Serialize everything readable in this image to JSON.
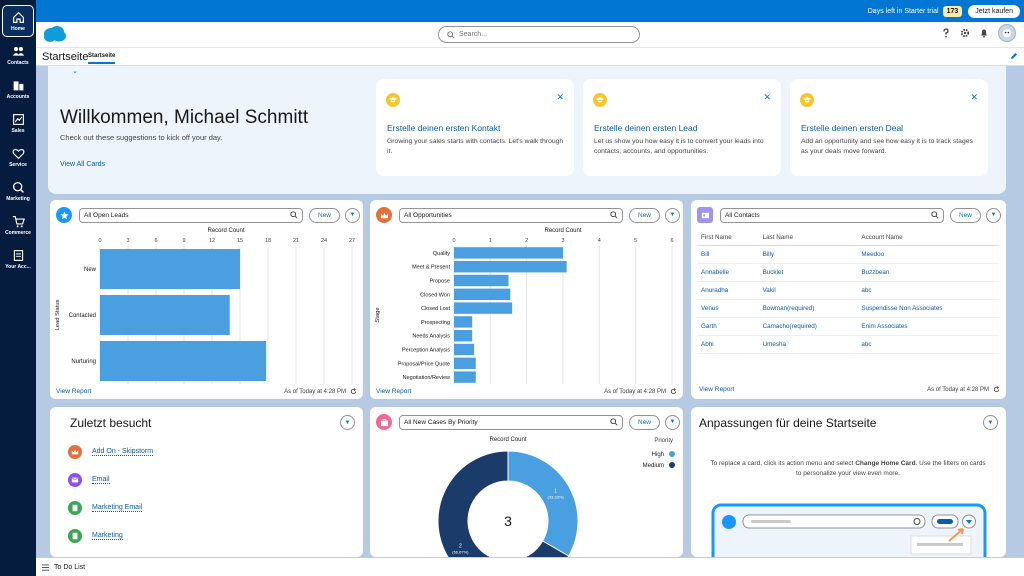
{
  "rail": [
    {
      "label": "Home",
      "icon": "home-icon"
    },
    {
      "label": "Contacts",
      "icon": "contacts-icon"
    },
    {
      "label": "Accounts",
      "icon": "accounts-icon"
    },
    {
      "label": "Sales",
      "icon": "sales-icon"
    },
    {
      "label": "Service",
      "icon": "heart-icon"
    },
    {
      "label": "Marketing",
      "icon": "marketing-icon"
    },
    {
      "label": "Commerce",
      "icon": "cart-icon"
    },
    {
      "label": "Your Acc...",
      "icon": "account-icon"
    }
  ],
  "trial": {
    "text": "Days left in Starter trial",
    "days": "173",
    "buy": "Jetzt kaufen"
  },
  "header": {
    "search_placeholder": "Search..."
  },
  "nav": {
    "app_name": "Startseite",
    "tab": "Startseite"
  },
  "welcome": {
    "title": "Willkommen, Michael Schmitt",
    "subtitle": "Check out these suggestions to kick off your day.",
    "link": "View All Cards",
    "suggestions": [
      {
        "title": "Erstelle deinen ersten Kontakt",
        "desc": "Growing your sales starts with contacts. Let's walk through it."
      },
      {
        "title": "Erstelle deinen ersten Lead",
        "desc": "Let us show you how easy it is to convert your leads into contacts, accounts, and opportunities."
      },
      {
        "title": "Erstelle deinen ersten Deal",
        "desc": "Add an opportunity and see how easy it is to track stages as your deals move forward."
      }
    ]
  },
  "leads": {
    "listview": "All Open Leads",
    "new": "New",
    "view_report": "View Report",
    "as_of": "As of Today at 4:28 PM",
    "chart_data": {
      "type": "bar",
      "orientation": "horizontal",
      "xlabel": "Record Count",
      "ylabel": "Lead Status",
      "ticks": [
        "0",
        "3",
        "6",
        "9",
        "12",
        "15",
        "18",
        "21",
        "24",
        "27"
      ],
      "xlim": [
        0,
        27
      ],
      "categories": [
        "New",
        "Contacted",
        "Nurturing"
      ],
      "values": [
        15,
        13.9,
        17.8
      ],
      "color": "#4a9fe0"
    }
  },
  "opps": {
    "listview": "All Opportunities",
    "new": "New",
    "view_report": "View Report",
    "as_of": "As of Today at 4:28 PM",
    "chart_data": {
      "type": "bar",
      "orientation": "horizontal",
      "xlabel": "Record Count",
      "ylabel": "Stage",
      "ticks": [
        "0",
        "1",
        "2",
        "3",
        "4",
        "5",
        "6"
      ],
      "xlim": [
        0,
        6
      ],
      "categories": [
        "Qualify",
        "Meet & Present",
        "Propose",
        "Closed Won",
        "Closed Lost",
        "Prospecting",
        "Needs Analysis",
        "Perception Analysis",
        "Proposal/Price Quote",
        "Negotiation/Review"
      ],
      "values": [
        3,
        3.1,
        1.5,
        1.55,
        1.6,
        0.5,
        0.5,
        0.55,
        0.6,
        0.6
      ],
      "color": "#4a9fe0"
    }
  },
  "contacts": {
    "listview": "All Contacts",
    "new": "New",
    "view_report": "View Report",
    "as_of": "As of Today at 4:28 PM",
    "columns": [
      "First Name",
      "Last Name",
      "Account Name"
    ],
    "rows": [
      [
        "Bill",
        "Billy",
        "Meedoo"
      ],
      [
        "Annabelle",
        "Bucklet",
        "Buzzbean"
      ],
      [
        "Anuradha",
        "Vakil",
        "abc"
      ],
      [
        "Venus",
        "Bowman(required)",
        "Suspendisse Non Associates"
      ],
      [
        "Garth",
        "Camacho(required)",
        "Enim Associates"
      ],
      [
        "Abhi",
        "Umesha",
        "abc"
      ]
    ]
  },
  "recent": {
    "title": "Zuletzt besucht",
    "items": [
      {
        "label": "Add On - Skipstorm",
        "color": "#e3703b"
      },
      {
        "label": "Email",
        "color": "#9050e9"
      },
      {
        "label": "Marketing Email",
        "color": "#3ba755"
      },
      {
        "label": "Marketing",
        "color": "#3ba755"
      }
    ]
  },
  "cases": {
    "listview": "All New Cases By Priority",
    "new": "New",
    "chart_data": {
      "type": "pie",
      "variant": "donut",
      "title": "Record Count",
      "legend_title": "Priority",
      "total": "3",
      "series": [
        {
          "name": "High",
          "value": 1,
          "label": "1",
          "pct": "(33.33%)",
          "color": "#4a9fe0"
        },
        {
          "name": "Medium",
          "value": 2,
          "label": "2",
          "pct": "(66.67%)",
          "color": "#1b3c6b"
        }
      ]
    }
  },
  "custom": {
    "title": "Anpassungen für deine Startseite",
    "desc_pre": "To replace a card, click its action menu and select ",
    "desc_bold": "Change Home Card",
    "desc_post": ". Use the filters on cards to personalize your view even more."
  },
  "footer": {
    "todo": "To Do List"
  },
  "colors": {
    "brand": "#0176d3",
    "nav": "#061c3f",
    "bar": "#4a9fe0"
  }
}
